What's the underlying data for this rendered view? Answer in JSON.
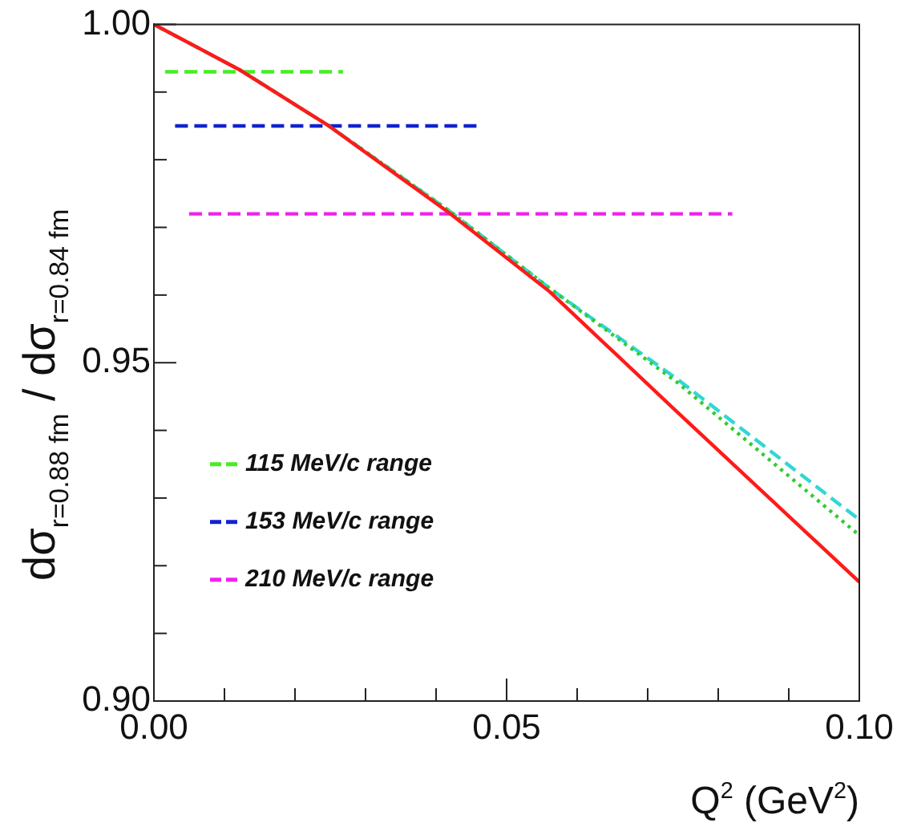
{
  "chart_data": {
    "type": "line",
    "xlabel": "Q$^{2}$ (GeV$^{2}$)",
    "ylabel": "dσ$_{r=0.88 fm}$ / dσ$_{r=0.84 fm}$",
    "xlim": [
      0,
      0.1
    ],
    "ylim": [
      0.9,
      1.0
    ],
    "xticks": [
      {
        "value": 0,
        "label": "0.00"
      },
      {
        "value": 0.01,
        "label": null
      },
      {
        "value": 0.02,
        "label": null
      },
      {
        "value": 0.03,
        "label": null
      },
      {
        "value": 0.04,
        "label": null
      },
      {
        "value": 0.05,
        "label": "0.05"
      },
      {
        "value": 0.06,
        "label": null
      },
      {
        "value": 0.07,
        "label": null
      },
      {
        "value": 0.08,
        "label": null
      },
      {
        "value": 0.09,
        "label": null
      },
      {
        "value": 0.1,
        "label": "0.10"
      }
    ],
    "yticks": [
      {
        "value": 0.9,
        "label": "0.90"
      },
      {
        "value": 0.91,
        "label": null
      },
      {
        "value": 0.92,
        "label": null
      },
      {
        "value": 0.93,
        "label": null
      },
      {
        "value": 0.94,
        "label": null
      },
      {
        "value": 0.95,
        "label": "0.95"
      },
      {
        "value": 0.96,
        "label": null
      },
      {
        "value": 0.97,
        "label": null
      },
      {
        "value": 0.98,
        "label": null
      },
      {
        "value": 0.99,
        "label": null
      },
      {
        "value": 1.0,
        "label": "1.00"
      }
    ],
    "grid": false,
    "legend": "left",
    "marker": "none",
    "series": [
      {
        "color": "#ff1a1a",
        "line_style": "solid",
        "x": [
          0,
          0.0123,
          0.0248,
          0.0418,
          0.0561,
          0.0743,
          0.1
        ],
        "values": [
          1.0,
          0.9932,
          0.985,
          0.9722,
          0.9605,
          0.9426,
          0.9176
        ]
      },
      {
        "color": "#33cc33",
        "line_style": "dotted",
        "x": [
          0,
          0.0123,
          0.0248,
          0.0418,
          0.0561,
          0.0743,
          0.1
        ],
        "values": [
          1.0,
          0.9932,
          0.985,
          0.9725,
          0.961,
          0.947,
          0.9245
        ]
      },
      {
        "color": "#33d6d6",
        "line_style": "dashed",
        "x": [
          0,
          0.0123,
          0.0248,
          0.0418,
          0.0561,
          0.0743,
          0.1
        ],
        "values": [
          1.0,
          0.9932,
          0.985,
          0.9725,
          0.961,
          0.9475,
          0.9268
        ]
      },
      {
        "name": "115 MeV/c range",
        "color": "#44ee22",
        "line_style": "dashed",
        "x": [
          0.0016,
          0.0268
        ],
        "values": [
          0.993,
          0.993
        ]
      },
      {
        "name": "153 MeV/c range",
        "color": "#1122cc",
        "line_style": "dashed",
        "x": [
          0.003,
          0.0464
        ],
        "values": [
          0.985,
          0.985
        ]
      },
      {
        "name": "210 MeV/c range",
        "color": "#ee22ee",
        "line_style": "dashed",
        "x": [
          0.005,
          0.082
        ],
        "values": [
          0.972,
          0.972
        ]
      }
    ]
  }
}
